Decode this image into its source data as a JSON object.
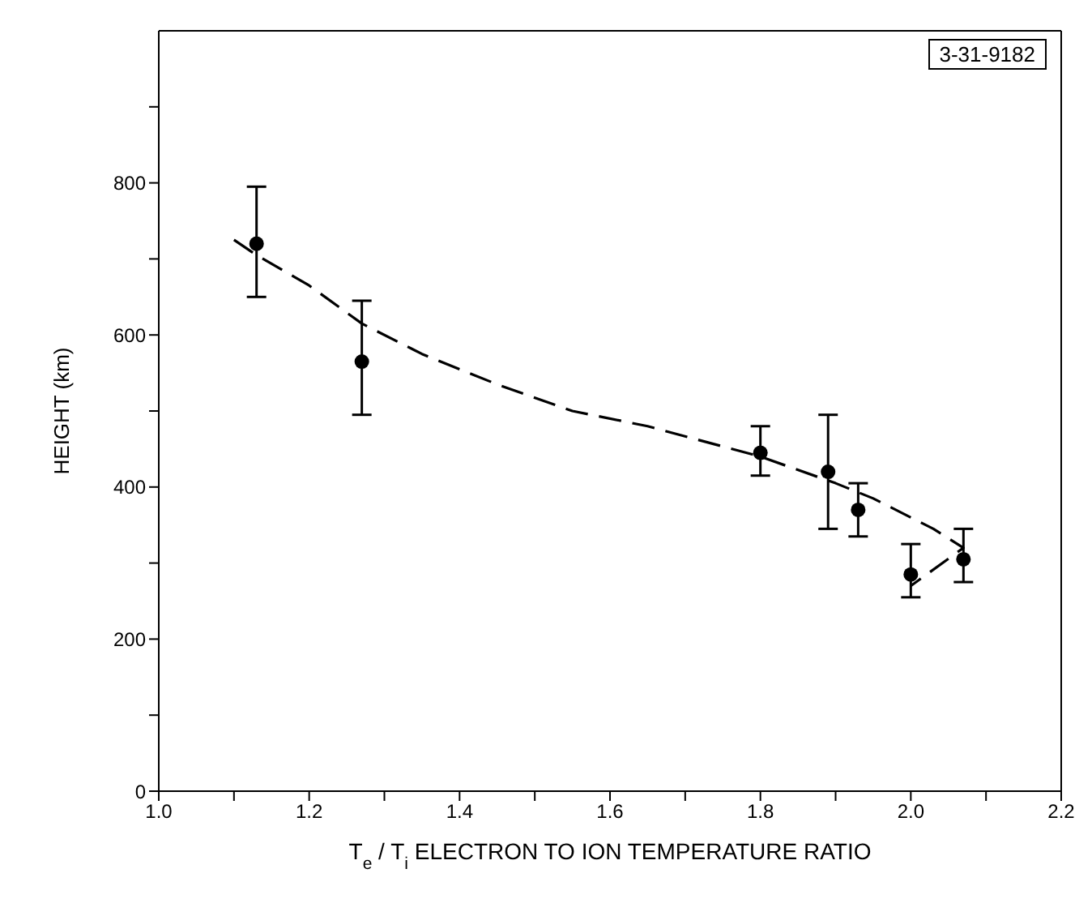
{
  "chart_data": {
    "type": "scatter",
    "xlabel": "T$_{e}$ / T$_{i}$ ELECTRON TO ION TEMPERATURE RATIO",
    "ylabel": "HEIGHT (km)",
    "annotations": [
      "3-31-9182"
    ],
    "xlim": [
      1.0,
      2.2
    ],
    "xticks": [
      {
        "value": 1,
        "label": "1.0"
      },
      {
        "value": 1.1,
        "label": null
      },
      1.2,
      {
        "value": 1.3,
        "label": null
      },
      1.4,
      {
        "value": 1.5,
        "label": null
      },
      1.6,
      {
        "value": 1.7,
        "label": null
      },
      1.8,
      {
        "value": 1.9,
        "label": null
      },
      {
        "value": 2,
        "label": "2.0"
      },
      {
        "value": 2.1,
        "label": null
      },
      2.2
    ],
    "ylim": [
      0,
      1000
    ],
    "yticks": [
      0,
      {
        "value": 100,
        "label": null
      },
      200,
      {
        "value": 300,
        "label": null
      },
      400,
      {
        "value": 500,
        "label": null
      },
      600,
      {
        "value": 700,
        "label": null
      },
      800,
      {
        "value": 900,
        "label": null
      }
    ],
    "grid": false,
    "legend": false,
    "series": [
      {
        "color": "#000000",
        "marker": "circle",
        "x": [
          1.13,
          1.27,
          1.8,
          1.89,
          1.93,
          2.0,
          2.07
        ],
        "values": [
          720,
          565,
          445,
          420,
          370,
          285,
          305
        ],
        "errors": [
          [
            650,
            795
          ],
          [
            495,
            645
          ],
          [
            415,
            480
          ],
          [
            345,
            495
          ],
          [
            335,
            405
          ],
          [
            255,
            325
          ],
          [
            275,
            345
          ]
        ]
      },
      {
        "type": "line",
        "color": "#000000",
        "marker": "none",
        "line_style": "dashed",
        "x": [
          1.1,
          1.13,
          1.2,
          1.27,
          1.35,
          1.45,
          1.55,
          1.65,
          1.8,
          1.9,
          1.95,
          2.03,
          2.07,
          2.0
        ],
        "values": [
          725,
          705,
          665,
          615,
          575,
          535,
          500,
          480,
          440,
          405,
          385,
          345,
          320,
          270
        ]
      }
    ]
  }
}
